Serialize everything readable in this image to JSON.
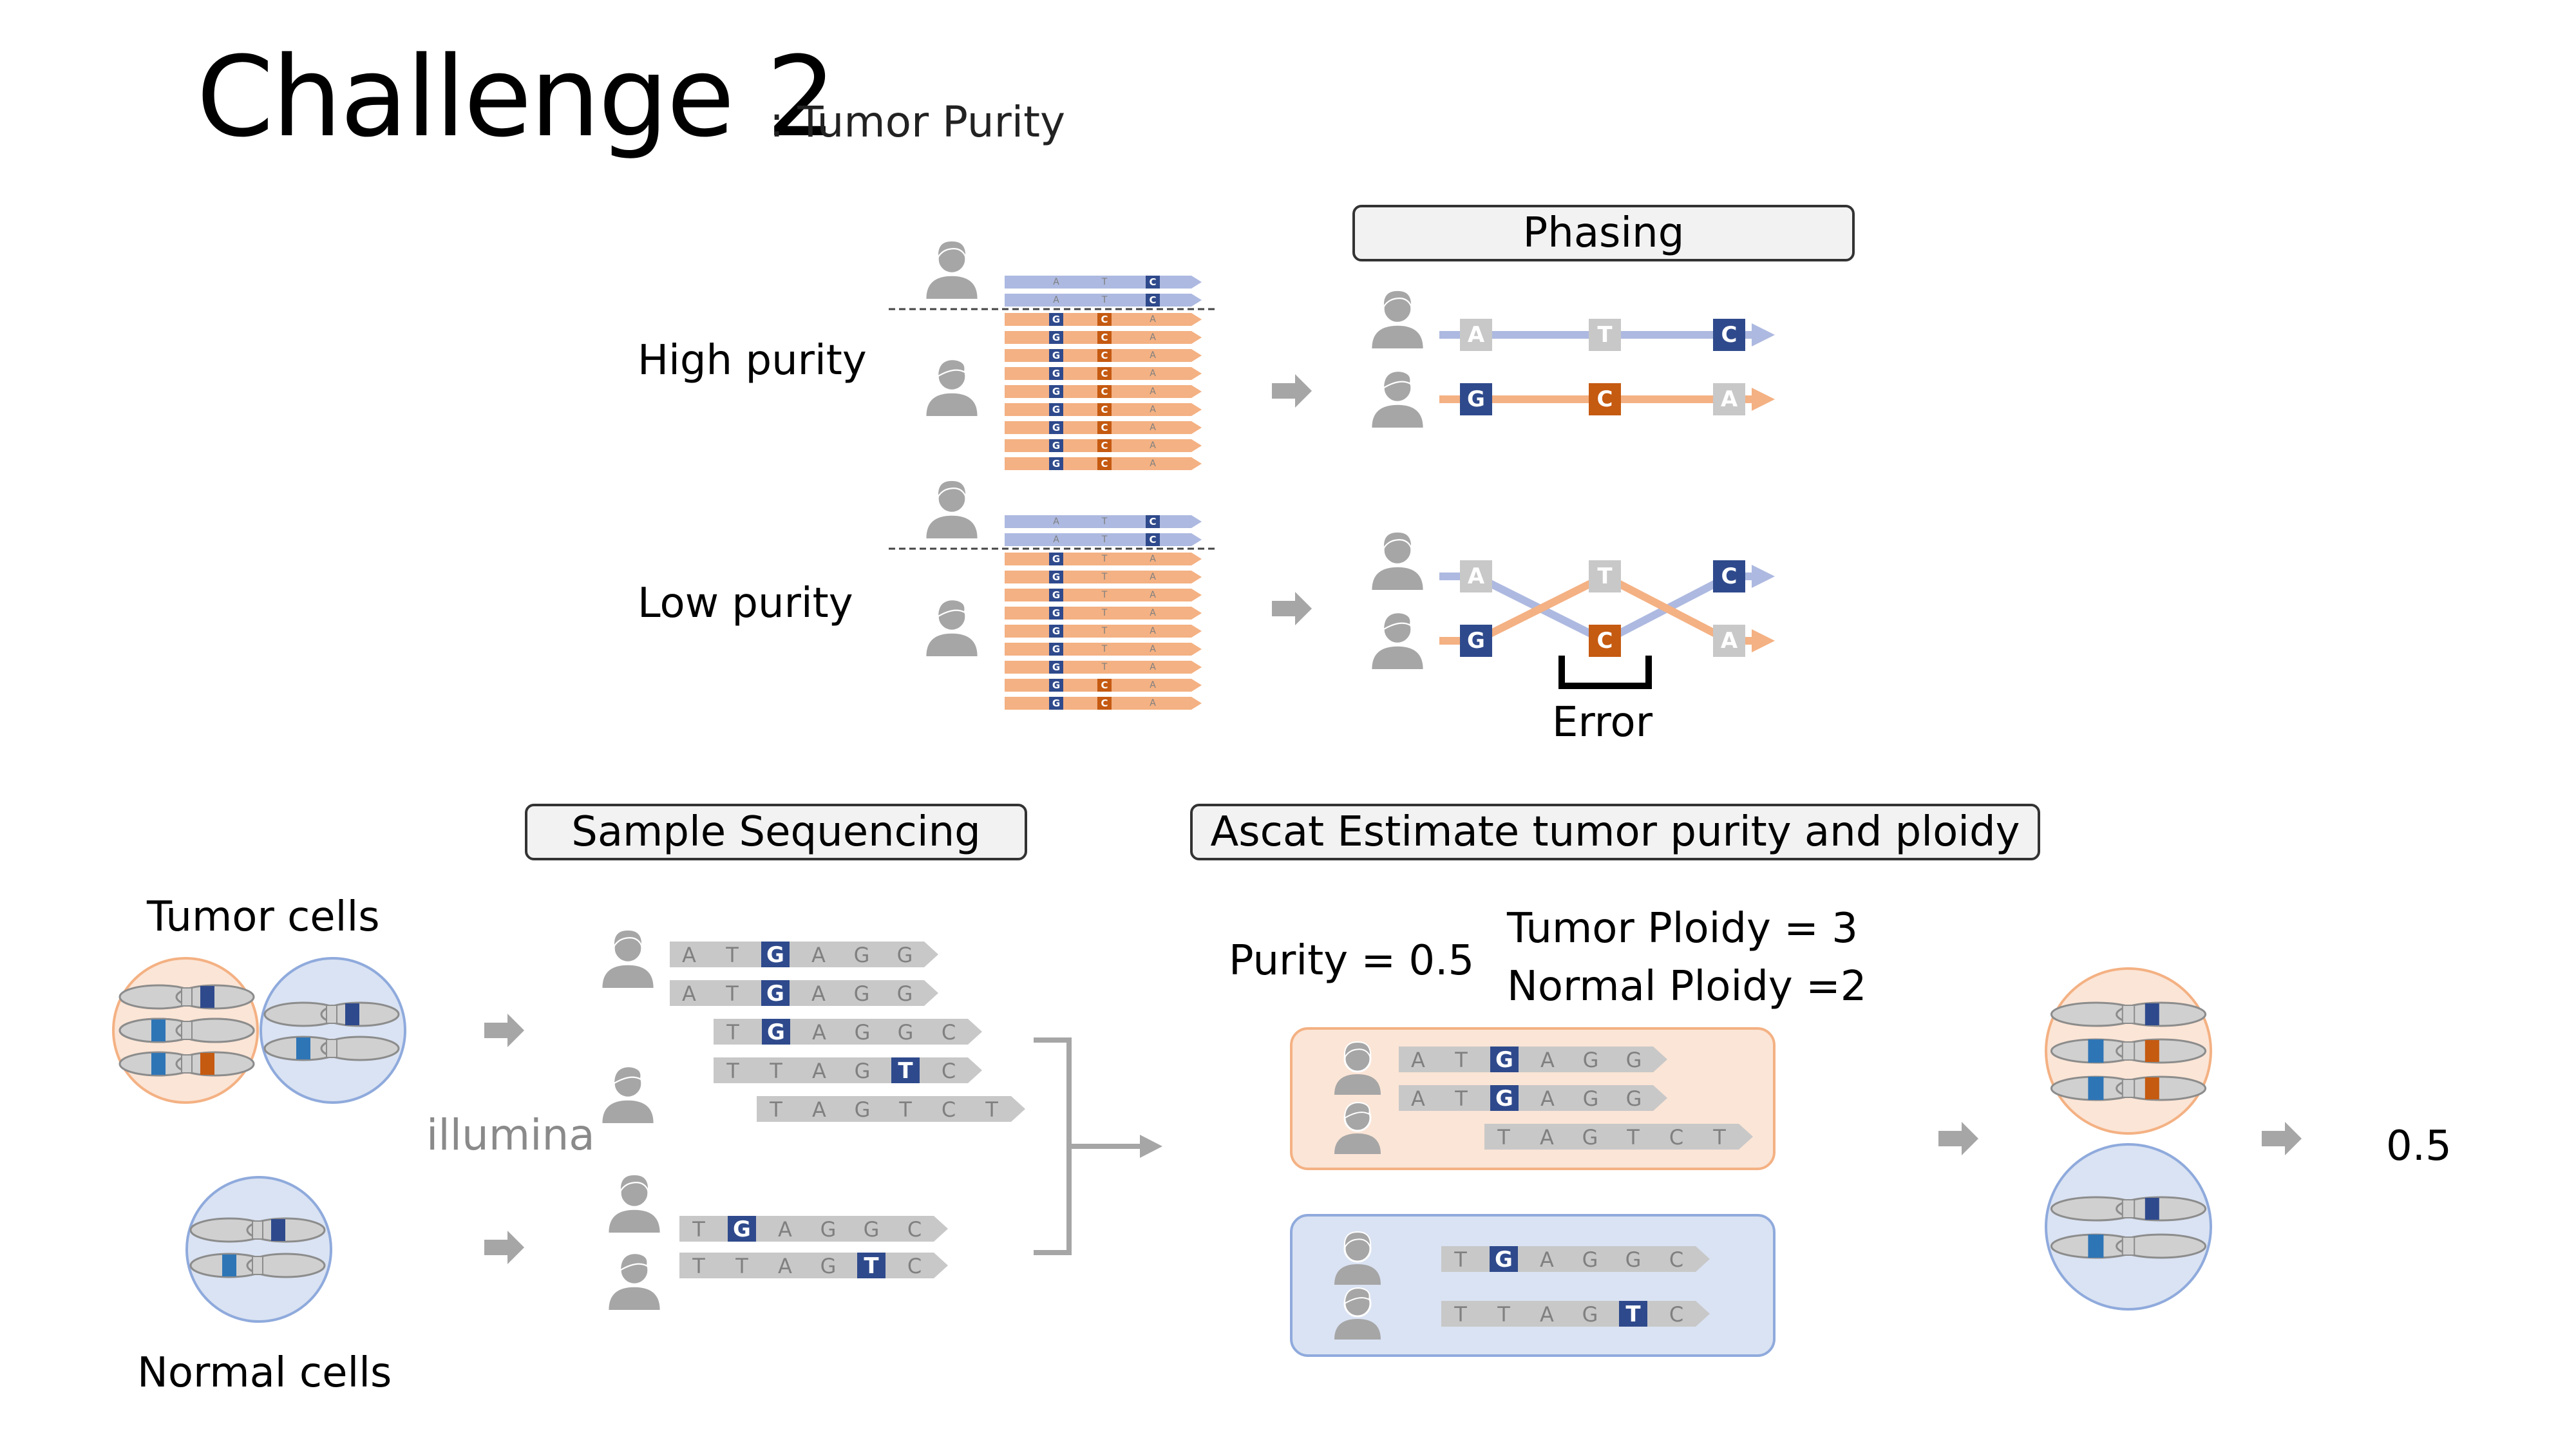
{
  "title": "Challenge 2",
  "subtitle": ": Tumor Purity",
  "phasing_label": "Phasing",
  "high_purity_label": "High purity",
  "low_purity_label": "Low purity",
  "error_label": "Error",
  "sample_sequencing_label": "Sample Sequencing",
  "ascat_label": "Ascat Estimate tumor purity and ploidy",
  "tumor_cells_label": "Tumor cells",
  "normal_cells_label": "Normal cells",
  "illumina_label": "illumina",
  "purity_text": "Purity = 0.5",
  "tumor_ploidy_text": "Tumor Ploidy = 3",
  "normal_ploidy_text": "Normal Ploidy =2",
  "result_value": "0.5",
  "colors": {
    "dark_blue": "#2f4a8c",
    "orange": "#c55a11",
    "light_blue": "#adb9e0",
    "light_orange": "#f4b183",
    "gray_base": "#c8c8c8",
    "gray_text": "#7f7f7f",
    "peach_bg": "#fbe5d6",
    "peach_border": "#f4b183",
    "blue_bg": "#dae3f3",
    "blue_border": "#8faadc"
  },
  "phasing_high": {
    "paternal": [
      "A",
      "T",
      "C"
    ],
    "maternal": [
      "G",
      "C",
      "A"
    ]
  },
  "phasing_low": {
    "top": [
      "A",
      "T",
      "C"
    ],
    "bottom": [
      "G",
      "C",
      "A"
    ]
  },
  "reads_high": {
    "blue": [
      [
        "A",
        "T",
        "C"
      ],
      [
        "A",
        "T",
        "C"
      ]
    ],
    "orange": [
      [
        "G",
        "C",
        "A"
      ],
      [
        "G",
        "C",
        "A"
      ],
      [
        "G",
        "C",
        "A"
      ],
      [
        "G",
        "C",
        "A"
      ],
      [
        "G",
        "C",
        "A"
      ],
      [
        "G",
        "C",
        "A"
      ],
      [
        "G",
        "C",
        "A"
      ],
      [
        "G",
        "C",
        "A"
      ],
      [
        "G",
        "C",
        "A"
      ]
    ]
  },
  "reads_low": {
    "blue": [
      [
        "A",
        "T",
        "C"
      ],
      [
        "A",
        "T",
        "C"
      ]
    ],
    "orange": [
      [
        "G",
        "T",
        "A"
      ],
      [
        "G",
        "T",
        "A"
      ],
      [
        "G",
        "T",
        "A"
      ],
      [
        "G",
        "T",
        "A"
      ],
      [
        "G",
        "T",
        "A"
      ],
      [
        "G",
        "T",
        "A"
      ],
      [
        "G",
        "T",
        "A"
      ],
      [
        "G",
        "C",
        "A"
      ],
      [
        "G",
        "C",
        "A"
      ]
    ]
  },
  "seq_tumor_reads": [
    [
      "A",
      "T",
      "G",
      "A",
      "G",
      "G"
    ],
    [
      "A",
      "T",
      "G",
      "A",
      "G",
      "G"
    ],
    [
      "T",
      "G",
      "A",
      "G",
      "G",
      "C"
    ],
    [
      "T",
      "T",
      "A",
      "G",
      "T",
      "C"
    ],
    [
      "T",
      "A",
      "G",
      "T",
      "C",
      "T"
    ]
  ],
  "seq_normal_reads": [
    [
      "T",
      "G",
      "A",
      "G",
      "G",
      "C"
    ],
    [
      "T",
      "T",
      "A",
      "G",
      "T",
      "C"
    ]
  ],
  "ascat_tumor_reads": [
    [
      "A",
      "T",
      "G",
      "A",
      "G",
      "G"
    ],
    [
      "A",
      "T",
      "G",
      "A",
      "G",
      "G"
    ],
    [
      "T",
      "A",
      "G",
      "T",
      "C",
      "T"
    ]
  ],
  "ascat_normal_reads": [
    [
      "T",
      "G",
      "A",
      "G",
      "G",
      "C"
    ],
    [
      "T",
      "T",
      "A",
      "G",
      "T",
      "C"
    ]
  ]
}
